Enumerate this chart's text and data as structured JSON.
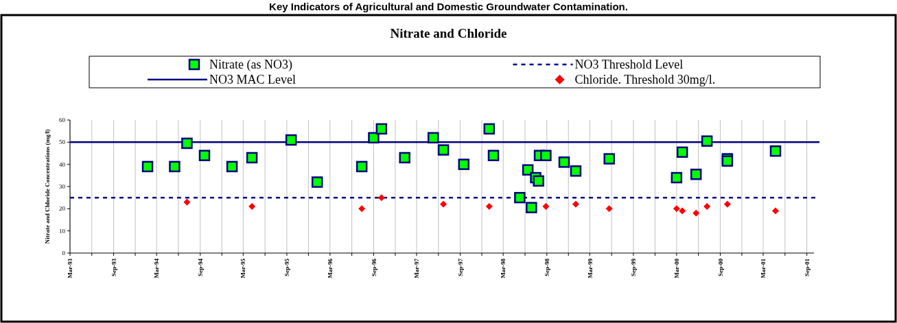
{
  "chart_data": {
    "type": "scatter",
    "title": "Key Indicators of Agricultural and Domestic Groundwater Contamination.",
    "subtitle": "Nitrate and Chloride",
    "ylabel": "Nitrate and Chloride Concentrations (mg/l)",
    "xlim": [
      "1993-03-01",
      "2001-10-01"
    ],
    "xticks": [
      {
        "value": "1993-03-01",
        "label": "Mar-93"
      },
      {
        "value": "1993-06-01",
        "label": null
      },
      {
        "value": "1993-09-01",
        "label": "Sep-93"
      },
      {
        "value": "1993-12-01",
        "label": null
      },
      {
        "value": "1994-03-01",
        "label": "Mar-94"
      },
      {
        "value": "1994-06-01",
        "label": null
      },
      {
        "value": "1994-09-01",
        "label": "Sep-94"
      },
      {
        "value": "1994-12-01",
        "label": null
      },
      {
        "value": "1995-03-01",
        "label": "Mar-95"
      },
      {
        "value": "1995-06-01",
        "label": null
      },
      {
        "value": "1995-09-01",
        "label": "Sep-95"
      },
      {
        "value": "1995-12-01",
        "label": null
      },
      {
        "value": "1996-03-01",
        "label": "Mar-96"
      },
      {
        "value": "1996-06-01",
        "label": null
      },
      {
        "value": "1996-09-01",
        "label": "Sep-96"
      },
      {
        "value": "1996-12-01",
        "label": null
      },
      {
        "value": "1997-03-01",
        "label": "Mar-97"
      },
      {
        "value": "1997-06-01",
        "label": null
      },
      {
        "value": "1997-09-01",
        "label": "Sep-97"
      },
      {
        "value": "1997-12-01",
        "label": null
      },
      {
        "value": "1998-03-01",
        "label": "Mar-98"
      },
      {
        "value": "1998-06-01",
        "label": null
      },
      {
        "value": "1998-09-01",
        "label": "Sep-98"
      },
      {
        "value": "1998-12-01",
        "label": null
      },
      {
        "value": "1999-03-01",
        "label": "Mar-99"
      },
      {
        "value": "1999-06-01",
        "label": null
      },
      {
        "value": "1999-09-01",
        "label": "Sep-99"
      },
      {
        "value": "1999-12-01",
        "label": null
      },
      {
        "value": "2000-03-01",
        "label": "Mar-00"
      },
      {
        "value": "2000-06-01",
        "label": null
      },
      {
        "value": "2000-09-01",
        "label": "Sep-00"
      },
      {
        "value": "2000-12-01",
        "label": null
      },
      {
        "value": "2001-03-01",
        "label": "Mar-01"
      },
      {
        "value": "2001-06-01",
        "label": null
      },
      {
        "value": "2001-09-01",
        "label": "Sep-01"
      }
    ],
    "ylim": [
      0,
      60
    ],
    "yticks": [
      0,
      10,
      20,
      30,
      40,
      50,
      60
    ],
    "grid": "x",
    "legend": "top",
    "series": [
      {
        "name": "Nitrate (as NO3)",
        "color": "#00ff00",
        "marker": "square",
        "x": [
          "1994-01-22",
          "1994-05-16",
          "1994-07-07",
          "1994-09-19",
          "1995-01-13",
          "1995-04-07",
          "1995-09-19",
          "1996-01-07",
          "1996-07-13",
          "1996-09-01",
          "1996-10-04",
          "1997-01-10",
          "1997-05-10",
          "1997-06-22",
          "1997-09-16",
          "1998-01-01",
          "1998-01-19",
          "1998-05-10",
          "1998-06-13",
          "1998-06-28",
          "1998-07-16",
          "1998-07-28",
          "1998-08-01",
          "1998-08-28",
          "1998-11-13",
          "1999-01-01",
          "1999-05-22",
          "2000-03-01",
          "2000-03-25",
          "2000-05-22",
          "2000-07-07",
          "2000-10-01",
          "2000-10-01",
          "2001-04-22"
        ],
        "values": [
          39,
          39,
          49.5,
          44,
          39,
          43,
          51,
          32,
          39,
          52,
          56,
          43,
          52,
          46.5,
          40,
          56,
          44,
          25,
          37.5,
          20.5,
          34,
          32.5,
          44,
          44,
          41,
          37,
          42.5,
          34,
          45.5,
          35.5,
          50.5,
          42.5,
          41.5,
          46
        ]
      },
      {
        "name": "Chloride. Threshold 30mg/l.",
        "color": "#ff0000",
        "marker": "diamond",
        "x": [
          "1994-07-07",
          "1995-04-07",
          "1996-07-13",
          "1996-10-04",
          "1997-06-22",
          "1998-01-01",
          "1998-08-28",
          "1999-01-01",
          "1999-05-22",
          "2000-03-01",
          "2000-03-25",
          "2000-05-22",
          "2000-07-07",
          "2000-10-01",
          "2001-04-22"
        ],
        "values": [
          23,
          21,
          20,
          25,
          22,
          21,
          21,
          22,
          20,
          20,
          19,
          18,
          21,
          22,
          19
        ]
      }
    ],
    "ref_lines": [
      {
        "axis": "y",
        "value": 25,
        "label": "NO3 Threshold Level",
        "color": "#000080",
        "line_style": "dashed"
      },
      {
        "axis": "y",
        "value": 50,
        "label": "NO3 MAC Level",
        "color": "#000080",
        "line_style": "solid"
      }
    ]
  }
}
